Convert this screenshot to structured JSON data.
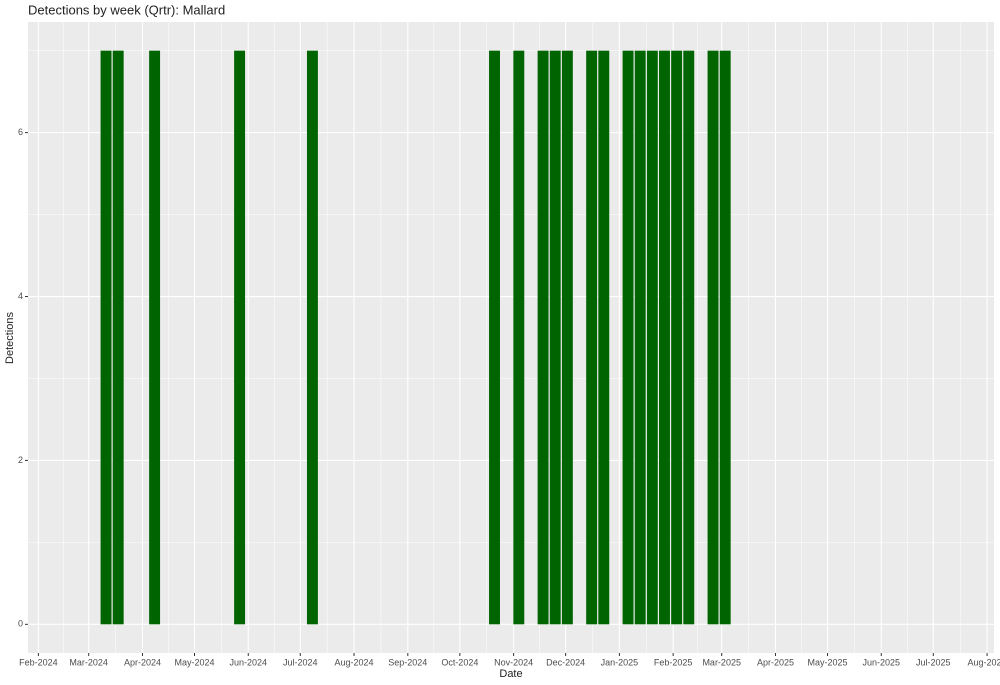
{
  "chart_data": {
    "type": "bar",
    "title": "Detections by week (Qrtr): Mallard",
    "x_label": "Date",
    "y_label": "Detections",
    "x": [
      "2024-03-11",
      "2024-03-18",
      "2024-04-08",
      "2024-05-27",
      "2024-07-08",
      "2024-10-21",
      "2024-11-04",
      "2024-11-18",
      "2024-11-25",
      "2024-12-02",
      "2024-12-16",
      "2024-12-23",
      "2025-01-06",
      "2025-01-13",
      "2025-01-20",
      "2025-01-27",
      "2025-02-03",
      "2025-02-10",
      "2025-02-24",
      "2025-03-03"
    ],
    "values": [
      7,
      7,
      7,
      7,
      7,
      7,
      7,
      7,
      7,
      7,
      7,
      7,
      7,
      7,
      7,
      7,
      7,
      7,
      7,
      7
    ],
    "color": "#006400",
    "xlim": [
      "2024-01-26",
      "2025-08-05"
    ],
    "xticks": [
      {
        "value": "2024-02-01",
        "label": "Feb-2024"
      },
      {
        "value": "2024-03-01",
        "label": "Mar-2024"
      },
      {
        "value": "2024-04-01",
        "label": "Apr-2024"
      },
      {
        "value": "2024-05-01",
        "label": "May-2024"
      },
      {
        "value": "2024-06-01",
        "label": "Jun-2024"
      },
      {
        "value": "2024-07-01",
        "label": "Jul-2024"
      },
      {
        "value": "2024-08-01",
        "label": "Aug-2024"
      },
      {
        "value": "2024-09-01",
        "label": "Sep-2024"
      },
      {
        "value": "2024-10-01",
        "label": "Oct-2024"
      },
      {
        "value": "2024-11-01",
        "label": "Nov-2024"
      },
      {
        "value": "2024-12-01",
        "label": "Dec-2024"
      },
      {
        "value": "2025-01-01",
        "label": "Jan-2025"
      },
      {
        "value": "2025-02-01",
        "label": "Feb-2025"
      },
      {
        "value": "2025-03-01",
        "label": "Mar-2025"
      },
      {
        "value": "2025-04-01",
        "label": "Apr-2025"
      },
      {
        "value": "2025-05-01",
        "label": "May-2025"
      },
      {
        "value": "2025-06-01",
        "label": "Jun-2025"
      },
      {
        "value": "2025-07-01",
        "label": "Jul-2025"
      },
      {
        "value": "2025-08-01",
        "label": "Aug-2025"
      }
    ],
    "ylim": [
      -0.35,
      7.35
    ],
    "yticks": [
      0,
      2,
      4,
      6
    ],
    "grid": true
  }
}
